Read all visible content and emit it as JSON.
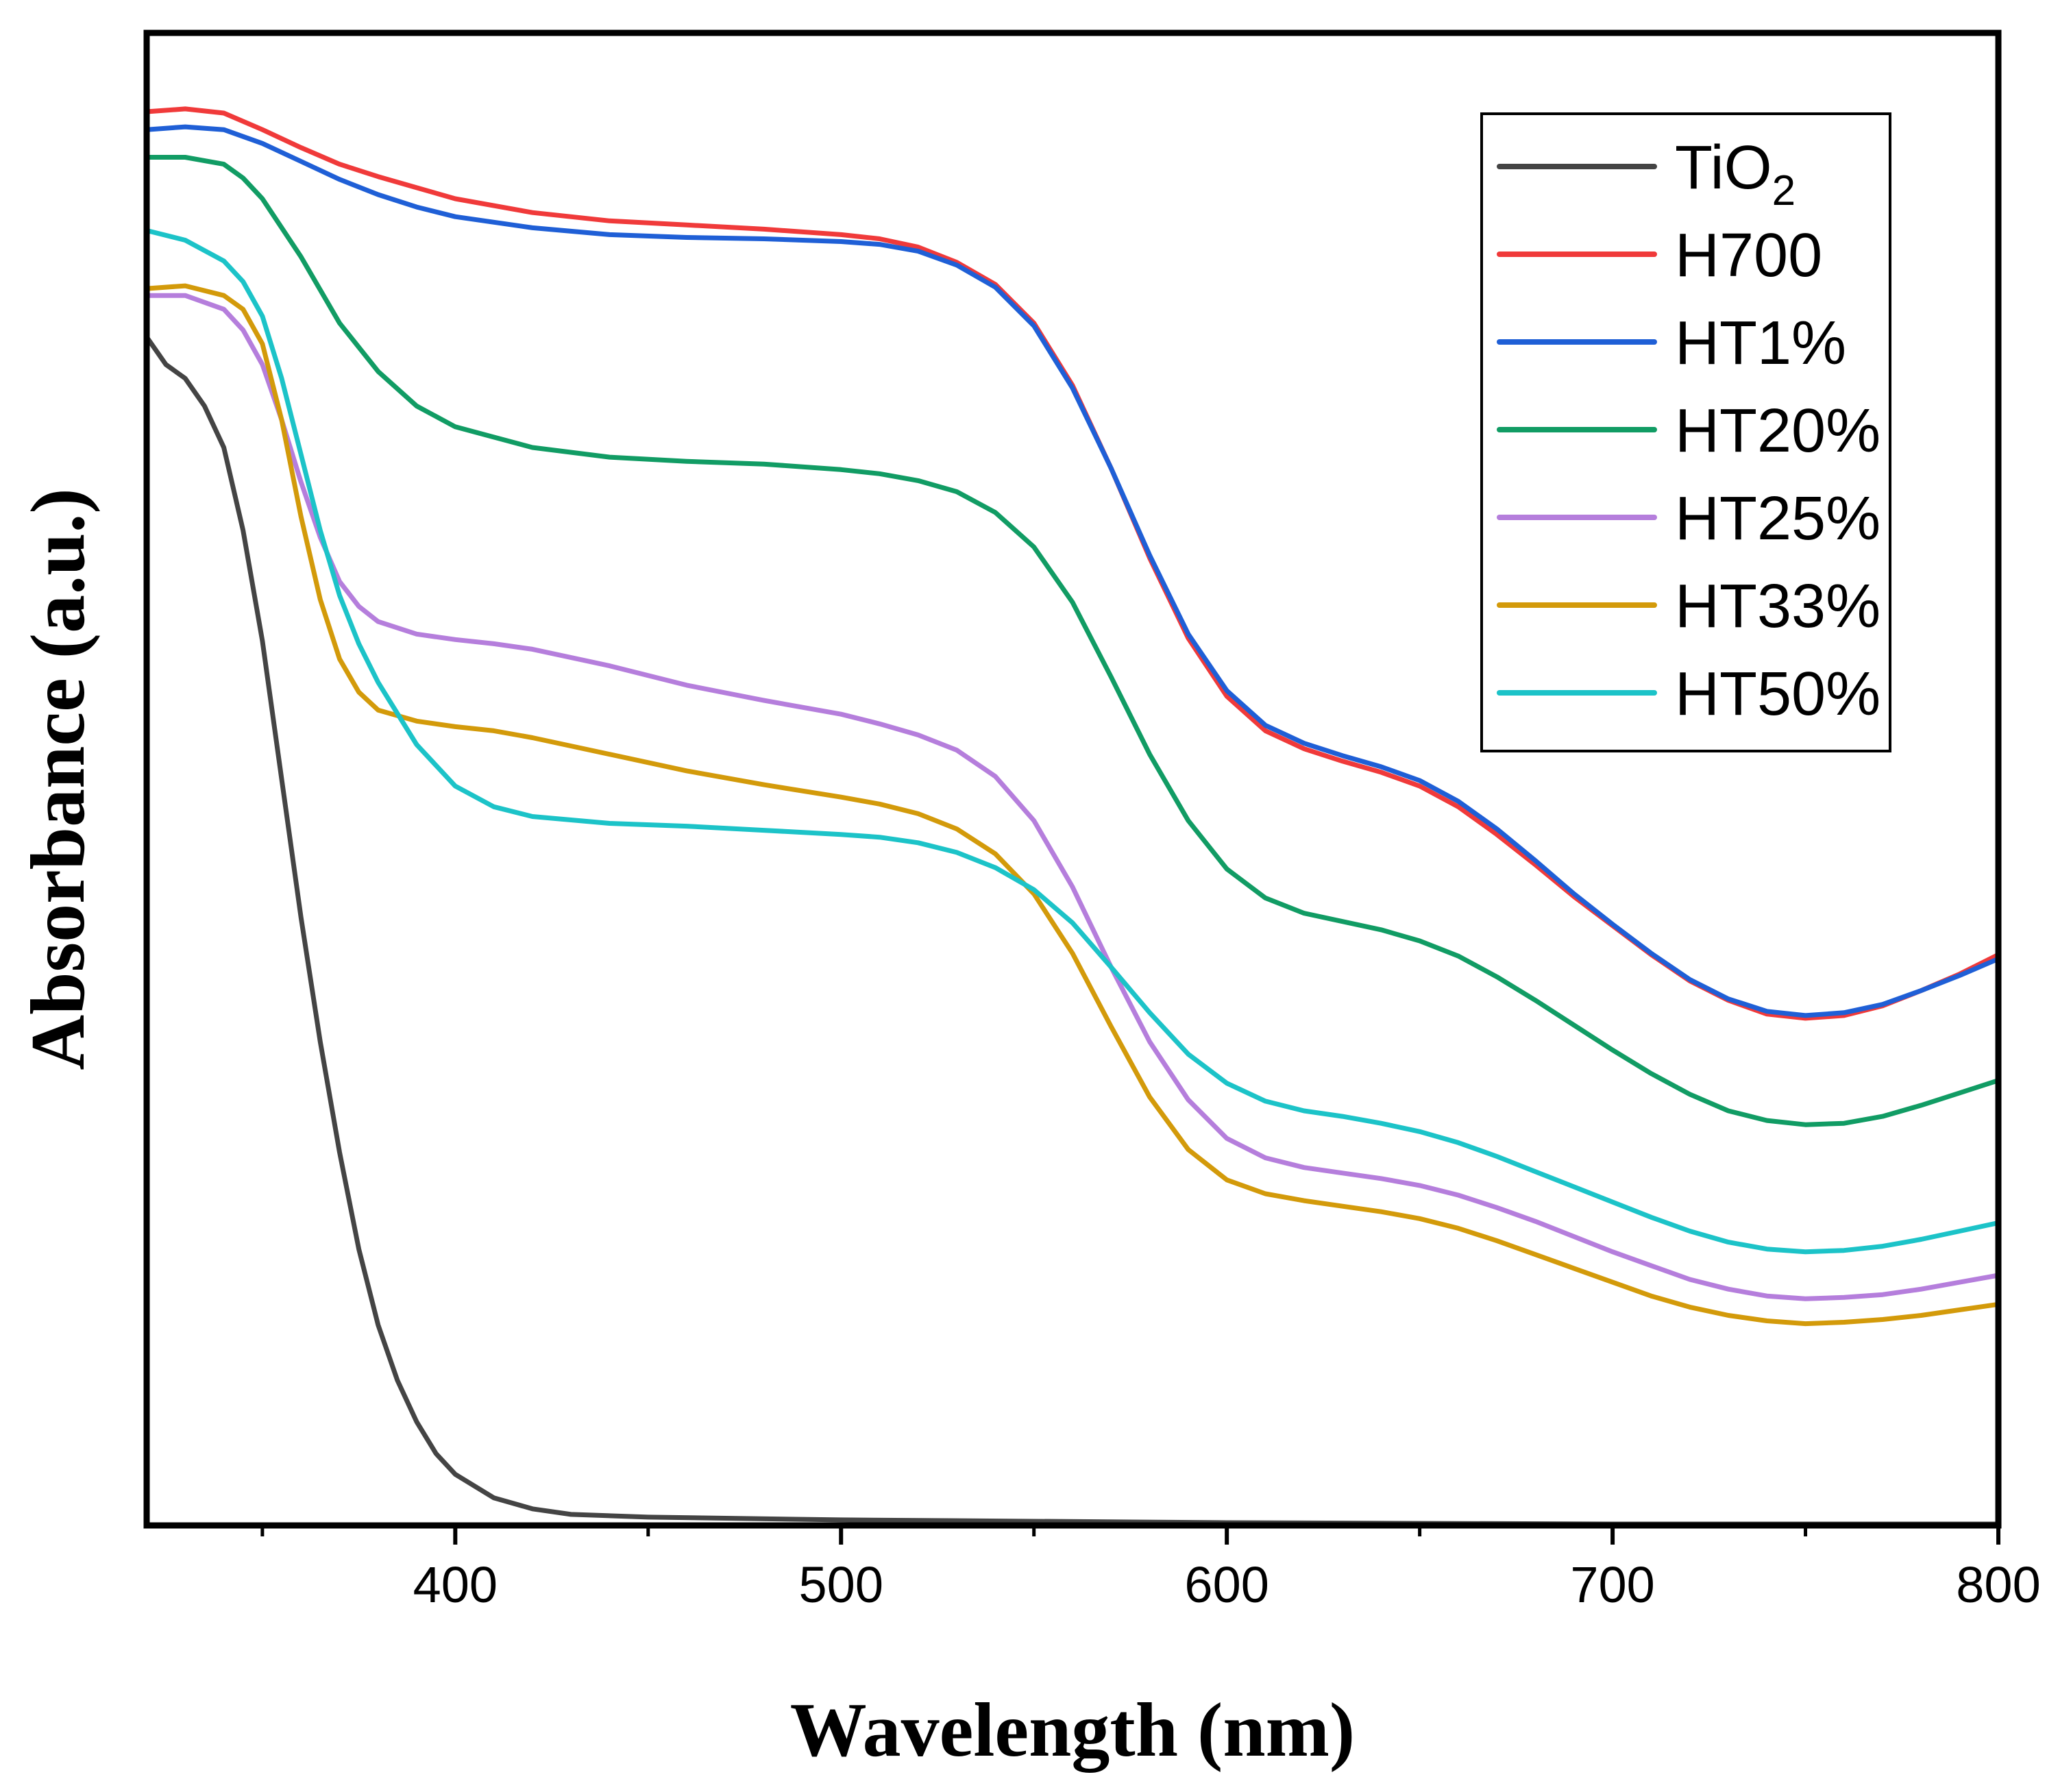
{
  "chart_data": {
    "type": "line",
    "title": "",
    "xlabel": "Wavelength (nm)",
    "ylabel": "Absorbance (a.u.)",
    "xlim": [
      320,
      800
    ],
    "ylim": [
      0,
      1.08
    ],
    "xticks": [
      400,
      500,
      600,
      700,
      800
    ],
    "x_minor_ticks": [
      350,
      450,
      550,
      650,
      750
    ],
    "grid": false,
    "legend_position": "top-right",
    "series": [
      {
        "name": "TiO",
        "subscript": "2",
        "color": "#444444",
        "points": [
          [
            320,
            0.86
          ],
          [
            325,
            0.84
          ],
          [
            330,
            0.83
          ],
          [
            335,
            0.81
          ],
          [
            340,
            0.78
          ],
          [
            345,
            0.72
          ],
          [
            350,
            0.64
          ],
          [
            355,
            0.54
          ],
          [
            360,
            0.44
          ],
          [
            365,
            0.35
          ],
          [
            370,
            0.27
          ],
          [
            375,
            0.2
          ],
          [
            380,
            0.145
          ],
          [
            385,
            0.105
          ],
          [
            390,
            0.075
          ],
          [
            395,
            0.052
          ],
          [
            400,
            0.037
          ],
          [
            410,
            0.02
          ],
          [
            420,
            0.012
          ],
          [
            430,
            0.008
          ],
          [
            450,
            0.006
          ],
          [
            500,
            0.004
          ],
          [
            600,
            0.002
          ],
          [
            700,
            0.001
          ],
          [
            800,
            0.001
          ]
        ]
      },
      {
        "name": "H700",
        "color": "#f03a3a",
        "points": [
          [
            320,
            1.023
          ],
          [
            330,
            1.025
          ],
          [
            340,
            1.022
          ],
          [
            350,
            1.01
          ],
          [
            360,
            0.997
          ],
          [
            370,
            0.985
          ],
          [
            380,
            0.976
          ],
          [
            390,
            0.968
          ],
          [
            400,
            0.96
          ],
          [
            420,
            0.95
          ],
          [
            440,
            0.944
          ],
          [
            460,
            0.941
          ],
          [
            480,
            0.938
          ],
          [
            500,
            0.934
          ],
          [
            510,
            0.931
          ],
          [
            520,
            0.925
          ],
          [
            530,
            0.914
          ],
          [
            540,
            0.898
          ],
          [
            550,
            0.87
          ],
          [
            560,
            0.825
          ],
          [
            570,
            0.765
          ],
          [
            580,
            0.7
          ],
          [
            590,
            0.642
          ],
          [
            600,
            0.6
          ],
          [
            610,
            0.575
          ],
          [
            620,
            0.562
          ],
          [
            630,
            0.553
          ],
          [
            640,
            0.545
          ],
          [
            650,
            0.535
          ],
          [
            660,
            0.52
          ],
          [
            670,
            0.5
          ],
          [
            680,
            0.478
          ],
          [
            690,
            0.455
          ],
          [
            700,
            0.434
          ],
          [
            710,
            0.413
          ],
          [
            720,
            0.394
          ],
          [
            730,
            0.38
          ],
          [
            740,
            0.37
          ],
          [
            750,
            0.367
          ],
          [
            760,
            0.369
          ],
          [
            770,
            0.376
          ],
          [
            780,
            0.387
          ],
          [
            790,
            0.399
          ],
          [
            800,
            0.413
          ]
        ]
      },
      {
        "name": "HT1%",
        "color": "#1f5fd6",
        "points": [
          [
            320,
            1.01
          ],
          [
            330,
            1.012
          ],
          [
            340,
            1.01
          ],
          [
            350,
            1.0
          ],
          [
            360,
            0.987
          ],
          [
            370,
            0.974
          ],
          [
            380,
            0.963
          ],
          [
            390,
            0.954
          ],
          [
            400,
            0.947
          ],
          [
            420,
            0.939
          ],
          [
            440,
            0.934
          ],
          [
            460,
            0.932
          ],
          [
            480,
            0.931
          ],
          [
            500,
            0.929
          ],
          [
            510,
            0.927
          ],
          [
            520,
            0.922
          ],
          [
            530,
            0.912
          ],
          [
            540,
            0.896
          ],
          [
            550,
            0.868
          ],
          [
            560,
            0.823
          ],
          [
            570,
            0.765
          ],
          [
            580,
            0.702
          ],
          [
            590,
            0.645
          ],
          [
            600,
            0.604
          ],
          [
            610,
            0.579
          ],
          [
            620,
            0.566
          ],
          [
            630,
            0.557
          ],
          [
            640,
            0.549
          ],
          [
            650,
            0.539
          ],
          [
            660,
            0.524
          ],
          [
            670,
            0.504
          ],
          [
            680,
            0.481
          ],
          [
            690,
            0.457
          ],
          [
            700,
            0.435
          ],
          [
            710,
            0.414
          ],
          [
            720,
            0.395
          ],
          [
            730,
            0.381
          ],
          [
            740,
            0.372
          ],
          [
            750,
            0.369
          ],
          [
            760,
            0.371
          ],
          [
            770,
            0.377
          ],
          [
            780,
            0.387
          ],
          [
            790,
            0.398
          ],
          [
            800,
            0.41
          ]
        ]
      },
      {
        "name": "HT20%",
        "color": "#119c64",
        "points": [
          [
            320,
            0.99
          ],
          [
            330,
            0.99
          ],
          [
            340,
            0.985
          ],
          [
            345,
            0.975
          ],
          [
            350,
            0.96
          ],
          [
            360,
            0.918
          ],
          [
            370,
            0.87
          ],
          [
            380,
            0.835
          ],
          [
            390,
            0.81
          ],
          [
            400,
            0.795
          ],
          [
            420,
            0.78
          ],
          [
            440,
            0.773
          ],
          [
            460,
            0.77
          ],
          [
            480,
            0.768
          ],
          [
            500,
            0.764
          ],
          [
            510,
            0.761
          ],
          [
            520,
            0.756
          ],
          [
            530,
            0.748
          ],
          [
            540,
            0.733
          ],
          [
            550,
            0.708
          ],
          [
            560,
            0.668
          ],
          [
            570,
            0.614
          ],
          [
            580,
            0.558
          ],
          [
            590,
            0.51
          ],
          [
            600,
            0.475
          ],
          [
            610,
            0.454
          ],
          [
            620,
            0.443
          ],
          [
            630,
            0.437
          ],
          [
            640,
            0.431
          ],
          [
            650,
            0.423
          ],
          [
            660,
            0.412
          ],
          [
            670,
            0.397
          ],
          [
            680,
            0.38
          ],
          [
            690,
            0.362
          ],
          [
            700,
            0.344
          ],
          [
            710,
            0.327
          ],
          [
            720,
            0.312
          ],
          [
            730,
            0.3
          ],
          [
            740,
            0.293
          ],
          [
            750,
            0.29
          ],
          [
            760,
            0.291
          ],
          [
            770,
            0.296
          ],
          [
            780,
            0.304
          ],
          [
            790,
            0.313
          ],
          [
            800,
            0.322
          ]
        ]
      },
      {
        "name": "HT25%",
        "color": "#b57edc",
        "points": [
          [
            320,
            0.89
          ],
          [
            330,
            0.89
          ],
          [
            340,
            0.88
          ],
          [
            345,
            0.865
          ],
          [
            350,
            0.84
          ],
          [
            355,
            0.8
          ],
          [
            360,
            0.755
          ],
          [
            365,
            0.715
          ],
          [
            370,
            0.683
          ],
          [
            375,
            0.665
          ],
          [
            380,
            0.654
          ],
          [
            390,
            0.645
          ],
          [
            400,
            0.641
          ],
          [
            410,
            0.638
          ],
          [
            420,
            0.634
          ],
          [
            440,
            0.622
          ],
          [
            460,
            0.608
          ],
          [
            480,
            0.597
          ],
          [
            500,
            0.587
          ],
          [
            510,
            0.58
          ],
          [
            520,
            0.572
          ],
          [
            530,
            0.561
          ],
          [
            540,
            0.542
          ],
          [
            550,
            0.51
          ],
          [
            560,
            0.462
          ],
          [
            570,
            0.404
          ],
          [
            580,
            0.35
          ],
          [
            590,
            0.308
          ],
          [
            600,
            0.28
          ],
          [
            610,
            0.266
          ],
          [
            620,
            0.259
          ],
          [
            630,
            0.255
          ],
          [
            640,
            0.251
          ],
          [
            650,
            0.246
          ],
          [
            660,
            0.239
          ],
          [
            670,
            0.23
          ],
          [
            680,
            0.22
          ],
          [
            690,
            0.209
          ],
          [
            700,
            0.198
          ],
          [
            710,
            0.188
          ],
          [
            720,
            0.178
          ],
          [
            730,
            0.171
          ],
          [
            740,
            0.166
          ],
          [
            750,
            0.164
          ],
          [
            760,
            0.165
          ],
          [
            770,
            0.167
          ],
          [
            780,
            0.171
          ],
          [
            790,
            0.176
          ],
          [
            800,
            0.181
          ]
        ]
      },
      {
        "name": "HT33%",
        "color": "#d39a0a",
        "points": [
          [
            320,
            0.895
          ],
          [
            330,
            0.897
          ],
          [
            340,
            0.89
          ],
          [
            345,
            0.88
          ],
          [
            350,
            0.855
          ],
          [
            355,
            0.8
          ],
          [
            360,
            0.73
          ],
          [
            365,
            0.67
          ],
          [
            370,
            0.627
          ],
          [
            375,
            0.603
          ],
          [
            380,
            0.59
          ],
          [
            390,
            0.582
          ],
          [
            400,
            0.578
          ],
          [
            410,
            0.575
          ],
          [
            420,
            0.57
          ],
          [
            440,
            0.558
          ],
          [
            460,
            0.546
          ],
          [
            480,
            0.536
          ],
          [
            500,
            0.527
          ],
          [
            510,
            0.522
          ],
          [
            520,
            0.515
          ],
          [
            530,
            0.504
          ],
          [
            540,
            0.486
          ],
          [
            550,
            0.457
          ],
          [
            560,
            0.414
          ],
          [
            570,
            0.361
          ],
          [
            580,
            0.31
          ],
          [
            590,
            0.272
          ],
          [
            600,
            0.25
          ],
          [
            610,
            0.24
          ],
          [
            620,
            0.235
          ],
          [
            630,
            0.231
          ],
          [
            640,
            0.227
          ],
          [
            650,
            0.222
          ],
          [
            660,
            0.215
          ],
          [
            670,
            0.206
          ],
          [
            680,
            0.196
          ],
          [
            690,
            0.186
          ],
          [
            700,
            0.176
          ],
          [
            710,
            0.166
          ],
          [
            720,
            0.158
          ],
          [
            730,
            0.152
          ],
          [
            740,
            0.148
          ],
          [
            750,
            0.146
          ],
          [
            760,
            0.147
          ],
          [
            770,
            0.149
          ],
          [
            780,
            0.152
          ],
          [
            790,
            0.156
          ],
          [
            800,
            0.16
          ]
        ]
      },
      {
        "name": "HT50%",
        "color": "#1cc3c8",
        "points": [
          [
            320,
            0.937
          ],
          [
            330,
            0.93
          ],
          [
            340,
            0.915
          ],
          [
            345,
            0.9
          ],
          [
            350,
            0.875
          ],
          [
            355,
            0.83
          ],
          [
            360,
            0.775
          ],
          [
            365,
            0.72
          ],
          [
            370,
            0.673
          ],
          [
            375,
            0.638
          ],
          [
            380,
            0.61
          ],
          [
            390,
            0.565
          ],
          [
            400,
            0.535
          ],
          [
            410,
            0.52
          ],
          [
            420,
            0.513
          ],
          [
            440,
            0.508
          ],
          [
            460,
            0.506
          ],
          [
            480,
            0.503
          ],
          [
            500,
            0.5
          ],
          [
            510,
            0.498
          ],
          [
            520,
            0.494
          ],
          [
            530,
            0.487
          ],
          [
            540,
            0.476
          ],
          [
            550,
            0.46
          ],
          [
            560,
            0.436
          ],
          [
            570,
            0.404
          ],
          [
            580,
            0.371
          ],
          [
            590,
            0.341
          ],
          [
            600,
            0.32
          ],
          [
            610,
            0.307
          ],
          [
            620,
            0.3
          ],
          [
            630,
            0.296
          ],
          [
            640,
            0.291
          ],
          [
            650,
            0.285
          ],
          [
            660,
            0.277
          ],
          [
            670,
            0.267
          ],
          [
            680,
            0.256
          ],
          [
            690,
            0.245
          ],
          [
            700,
            0.234
          ],
          [
            710,
            0.223
          ],
          [
            720,
            0.213
          ],
          [
            730,
            0.205
          ],
          [
            740,
            0.2
          ],
          [
            750,
            0.198
          ],
          [
            760,
            0.199
          ],
          [
            770,
            0.202
          ],
          [
            780,
            0.207
          ],
          [
            790,
            0.213
          ],
          [
            800,
            0.219
          ]
        ]
      }
    ]
  }
}
